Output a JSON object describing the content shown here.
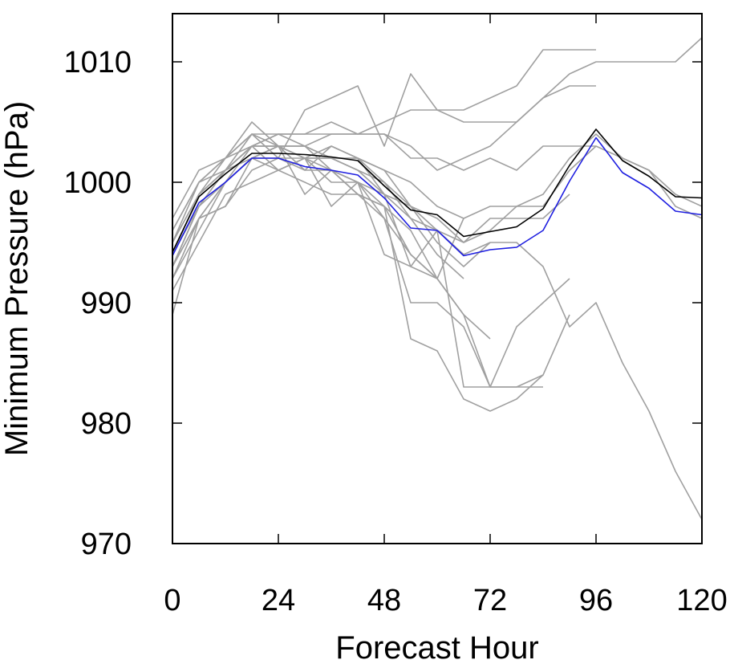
{
  "chart_data": {
    "type": "line",
    "xlabel": "Forecast Hour",
    "ylabel": "Minimum Pressure (hPa)",
    "xlim": [
      0,
      120
    ],
    "ylim": [
      970,
      1014
    ],
    "xticks": [
      0,
      24,
      48,
      72,
      96,
      120
    ],
    "yticks": [
      970,
      980,
      990,
      1000,
      1010
    ],
    "grid": false,
    "legend": "none",
    "colors": {
      "black_series": "#000000",
      "blue_series": "#1f1fe0",
      "members": "#a0a0a0"
    },
    "series": [
      {
        "color": "#000000",
        "x": [
          0,
          6,
          12,
          18,
          24,
          30,
          36,
          42,
          48,
          54,
          60,
          66,
          72,
          78,
          84,
          90,
          96,
          102,
          108,
          114,
          120
        ],
        "y": [
          994.2,
          998.8,
          1000.7,
          1002.4,
          1002.4,
          1002.3,
          1002.1,
          1001.8,
          999.7,
          997.7,
          997.3,
          995.5,
          995.9,
          996.3,
          997.8,
          1001.4,
          1004.4,
          1001.8,
          1000.5,
          998.8,
          998.7
        ]
      },
      {
        "color": "#1f1fe0",
        "x": [
          0,
          6,
          12,
          18,
          24,
          30,
          36,
          42,
          48,
          54,
          60,
          66,
          72,
          78,
          84,
          90,
          96,
          102,
          108,
          114,
          120
        ],
        "y": [
          993.9,
          998.3,
          1000.0,
          1002.0,
          1002.0,
          1001.3,
          1001.0,
          1000.6,
          998.7,
          996.2,
          996.0,
          993.9,
          994.4,
          994.6,
          996.0,
          1000.1,
          1003.7,
          1000.8,
          999.5,
          997.6,
          997.3
        ]
      },
      {
        "color": "#a0a0a0",
        "x": [
          0,
          6,
          12,
          18,
          24,
          30,
          36,
          42,
          48,
          54,
          60,
          66,
          72,
          78,
          84,
          90
        ],
        "y": [
          994,
          999,
          1001,
          1003,
          1004,
          1003,
          1002,
          1002,
          1000,
          997,
          996,
          995,
          997,
          997,
          997,
          999
        ]
      },
      {
        "color": "#a0a0a0",
        "x": [
          0,
          6,
          12,
          18,
          24,
          30,
          36,
          42,
          48,
          54,
          60,
          66,
          72,
          78,
          84,
          90,
          96
        ],
        "y": [
          995,
          999,
          1001,
          1002,
          1003,
          1003,
          1002,
          1001,
          999,
          998,
          997,
          995,
          996,
          998,
          998,
          1001,
          1003
        ]
      },
      {
        "color": "#a0a0a0",
        "x": [
          0,
          6,
          12,
          18,
          24,
          30,
          36,
          42,
          48,
          54,
          60,
          66,
          72,
          78,
          84,
          90,
          96,
          102,
          108,
          114,
          120
        ],
        "y": [
          995,
          999,
          1001,
          1003,
          1003,
          1002,
          1002,
          1002,
          1001,
          1000,
          998,
          997,
          998,
          998,
          999,
          1002,
          1004,
          1002,
          1001,
          999,
          998
        ]
      },
      {
        "color": "#a0a0a0",
        "x": [
          0,
          6,
          12,
          18,
          24,
          30,
          36,
          42,
          48,
          54,
          60,
          66,
          72,
          78,
          84,
          90,
          96,
          102,
          108,
          114,
          120
        ],
        "y": [
          996,
          1000,
          1002,
          1003,
          1004,
          1004,
          1004,
          1004,
          1004,
          1003,
          1001,
          1002,
          1003,
          1005,
          1007,
          1009,
          1010,
          1010,
          1010,
          1010,
          1012
        ]
      },
      {
        "color": "#a0a0a0",
        "x": [
          0,
          6,
          12,
          18,
          24,
          30,
          36,
          42,
          48,
          54,
          60,
          66,
          72,
          78,
          84,
          90,
          96,
          102,
          108,
          114,
          120
        ],
        "y": [
          997,
          1001,
          1002,
          1004,
          1004,
          1004,
          1005,
          1004,
          1004,
          1002,
          1002,
          1001,
          1002,
          1001,
          1003,
          1003,
          1003,
          1002,
          1001,
          998,
          997
        ]
      },
      {
        "color": "#a0a0a0",
        "x": [
          0,
          6,
          12,
          18,
          24,
          30,
          36,
          42,
          48,
          54,
          60,
          66,
          72,
          78,
          84,
          90,
          96
        ],
        "y": [
          993,
          998,
          1000,
          1003,
          1003,
          1003,
          1004,
          1004,
          1005,
          1006,
          1006,
          1006,
          1007,
          1008,
          1011,
          1011,
          1011
        ]
      },
      {
        "color": "#a0a0a0",
        "x": [
          0,
          6,
          12,
          18,
          24,
          30,
          36,
          42,
          48,
          54,
          60,
          66,
          72,
          78,
          84,
          90,
          96
        ],
        "y": [
          992,
          997,
          1000,
          1002,
          1002,
          1006,
          1007,
          1008,
          1003,
          1009,
          1006,
          1005,
          1005,
          1005,
          1007,
          1008,
          1008
        ]
      },
      {
        "color": "#a0a0a0",
        "x": [
          0,
          6,
          12,
          18,
          24,
          30,
          36,
          42,
          48,
          54,
          60,
          66,
          72,
          78,
          84,
          90,
          96,
          102,
          108,
          114,
          120
        ],
        "y": [
          989,
          997,
          998,
          1002,
          1001,
          1002,
          1002,
          1001,
          1000,
          998,
          996,
          994,
          995,
          995,
          993,
          988,
          990,
          985,
          981,
          976,
          972
        ]
      },
      {
        "color": "#a0a0a0",
        "x": [
          0,
          6,
          12,
          18,
          24,
          30,
          36,
          42,
          48,
          54,
          60,
          66,
          72,
          78,
          84,
          90
        ],
        "y": [
          991,
          995,
          999,
          1000,
          1001,
          1000,
          999,
          999,
          997,
          990,
          990,
          988,
          983,
          983,
          984,
          989
        ]
      },
      {
        "color": "#a0a0a0",
        "x": [
          0,
          6,
          12,
          18,
          24,
          30,
          36,
          42,
          48,
          54,
          60,
          66,
          72,
          78,
          84,
          90
        ],
        "y": [
          993,
          997,
          998,
          1001,
          1002,
          1002,
          1000,
          1000,
          998,
          994,
          992,
          989,
          983,
          988,
          990,
          992
        ]
      },
      {
        "color": "#a0a0a0",
        "x": [
          0,
          6,
          12,
          18,
          24,
          30,
          36,
          42,
          48,
          54,
          60,
          66,
          72,
          78,
          84
        ],
        "y": [
          992,
          996,
          1000,
          1002,
          1003,
          1001,
          1001,
          999,
          998,
          987,
          986,
          982,
          981,
          982,
          984
        ]
      },
      {
        "color": "#a0a0a0",
        "x": [
          0,
          6,
          12,
          18,
          24,
          30,
          36,
          42,
          48,
          54,
          60,
          66,
          72
        ],
        "y": [
          994,
          999,
          1002,
          1004,
          1003,
          1002,
          1003,
          1002,
          999,
          993,
          992,
          989,
          987
        ]
      },
      {
        "color": "#a0a0a0",
        "x": [
          0,
          6,
          12,
          18,
          24,
          30,
          36,
          42,
          48,
          54,
          60,
          66,
          72,
          78,
          84
        ],
        "y": [
          993,
          998,
          1001,
          1003,
          1003,
          999,
          1001,
          1000,
          994,
          993,
          996,
          983,
          983,
          983,
          983
        ]
      },
      {
        "color": "#a0a0a0",
        "x": [
          0,
          6,
          12,
          18,
          24,
          30,
          36,
          42,
          48,
          54,
          60
        ],
        "y": [
          996,
          1000,
          1002,
          1005,
          1003,
          1002,
          1001,
          999,
          998,
          996,
          992
        ]
      },
      {
        "color": "#a0a0a0",
        "x": [
          0,
          6,
          12,
          18,
          24,
          30,
          36,
          42,
          48,
          54,
          60,
          66
        ],
        "y": [
          995,
          1000,
          1001,
          1003,
          1001,
          1002,
          998,
          1000,
          999,
          997,
          994,
          992
        ]
      },
      {
        "color": "#a0a0a0",
        "x": [
          0,
          6,
          12,
          18,
          24,
          30,
          36,
          42,
          48,
          54,
          60,
          66,
          72
        ],
        "y": [
          994,
          998,
          1001,
          1004,
          1002,
          1001,
          1003,
          1002,
          1001,
          998,
          995,
          993,
          995
        ]
      },
      {
        "color": "#a0a0a0",
        "x": [
          0,
          6,
          12,
          18,
          24,
          30,
          36,
          42,
          48,
          54,
          60,
          66
        ],
        "y": [
          993,
          997,
          1000,
          1002,
          1003,
          1003,
          1001,
          1000,
          997,
          994,
          992,
          997
        ]
      }
    ]
  }
}
